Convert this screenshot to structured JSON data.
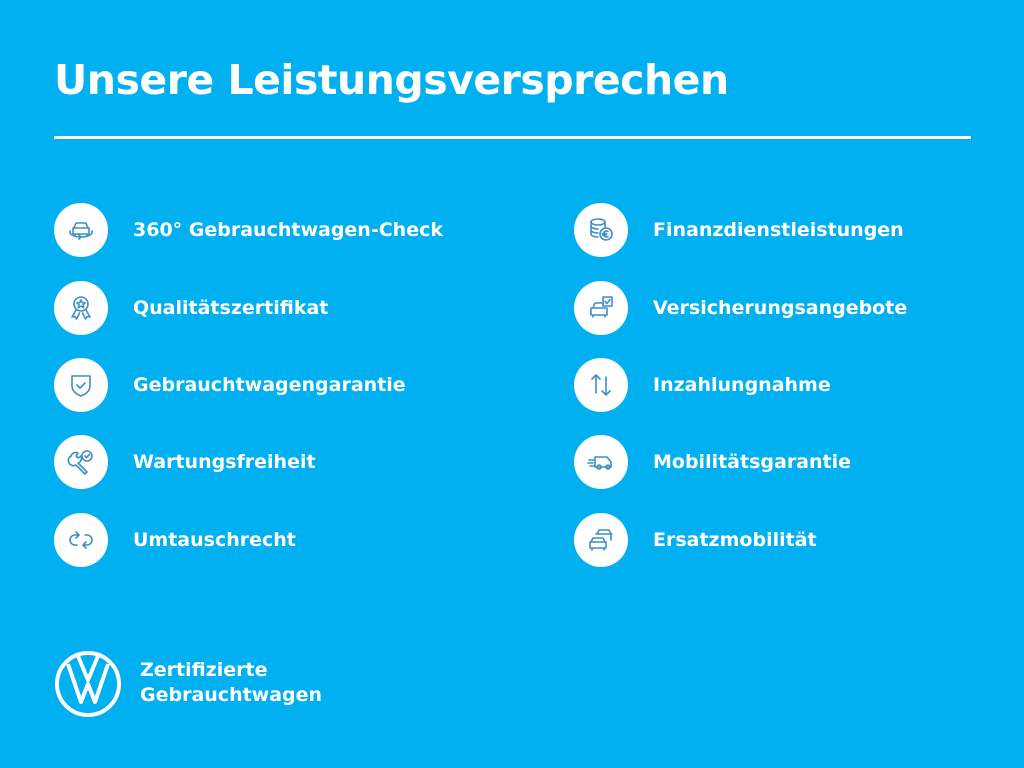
{
  "title": "Unsere Leistungsversprechen",
  "left_items": [
    {
      "label": "360° Gebrauchtwagen-Check",
      "icon": "car-360-icon"
    },
    {
      "label": "Qualitätszertifikat",
      "icon": "award-badge-icon"
    },
    {
      "label": "Gebrauchtwagengarantie",
      "icon": "shield-check-icon"
    },
    {
      "label": "Wartungsfreiheit",
      "icon": "wrench-check-icon"
    },
    {
      "label": "Umtauschrecht",
      "icon": "exchange-arrows-icon"
    }
  ],
  "right_items": [
    {
      "label": "Finanzdienstleistungen",
      "icon": "coins-euro-icon"
    },
    {
      "label": "Versicherungsangebote",
      "icon": "car-insurance-icon"
    },
    {
      "label": "Inzahlungnahme",
      "icon": "up-down-arrows-icon"
    },
    {
      "label": "Mobilitätsgarantie",
      "icon": "towing-van-icon"
    },
    {
      "label": "Ersatzmobilität",
      "icon": "replacement-cars-icon"
    }
  ],
  "brand": {
    "line1": "Zertifizierte",
    "line2": "Gebrauchtwagen",
    "logo": "VW"
  },
  "colors": {
    "background": "#00b0f0",
    "icon": "#3f8fc4"
  }
}
